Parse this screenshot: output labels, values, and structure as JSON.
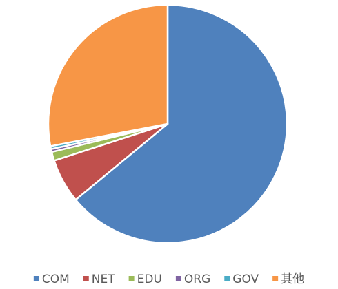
{
  "chart_data": {
    "type": "pie",
    "categories": [
      "COM",
      "NET",
      "EDU",
      "ORG",
      "GOV",
      "其他"
    ],
    "values": [
      64,
      6,
      1.2,
      0.4,
      0.4,
      28
    ],
    "colors": [
      "#4f81bd",
      "#c0504d",
      "#9bbb59",
      "#8064a2",
      "#4bacc6",
      "#f79646"
    ],
    "legend": "bottom"
  }
}
